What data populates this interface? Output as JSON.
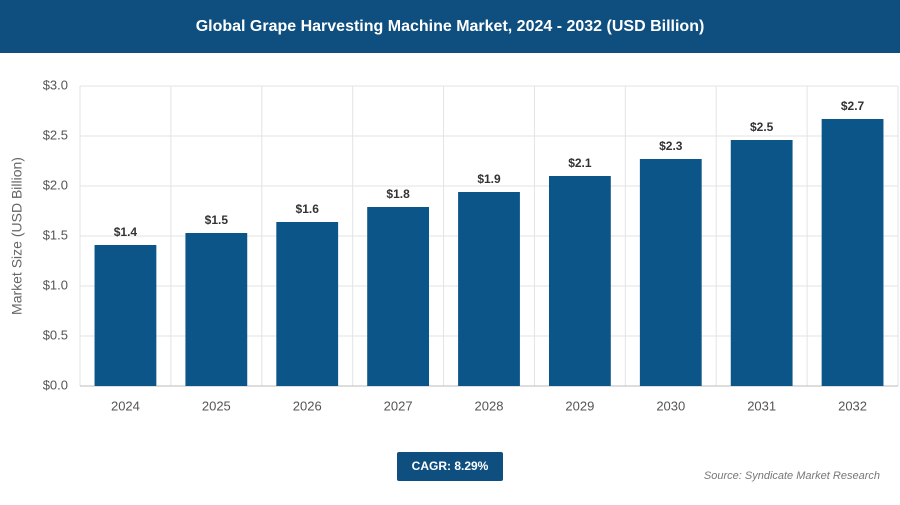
{
  "chart_data": {
    "type": "bar",
    "title": "Global Grape Harvesting Machine Market, 2024 - 2032 (USD Billion)",
    "y_label": "Market Size (USD Billion)",
    "categories": [
      "2024",
      "2025",
      "2026",
      "2027",
      "2028",
      "2029",
      "2030",
      "2031",
      "2032"
    ],
    "values": [
      1.41,
      1.53,
      1.64,
      1.79,
      1.94,
      2.1,
      2.27,
      2.46,
      2.67
    ],
    "value_labels": [
      "$1.4",
      "$1.5",
      "$1.6",
      "$1.8",
      "$1.9",
      "$2.1",
      "$2.3",
      "$2.5",
      "$2.7"
    ],
    "color": "#0b5588",
    "ylim": [
      0,
      3
    ],
    "yticks": [
      {
        "value": 0,
        "label": "$0.0"
      },
      {
        "value": 0.5,
        "label": "$0.5"
      },
      {
        "value": 1,
        "label": "$1.0"
      },
      {
        "value": 1.5,
        "label": "$1.5"
      },
      {
        "value": 2,
        "label": "$2.0"
      },
      {
        "value": 2.5,
        "label": "$2.5"
      },
      {
        "value": 3,
        "label": "$3.0"
      }
    ],
    "grid": true,
    "cagr": "CAGR: 8.29%",
    "source": "Source: Syndicate Market Research"
  }
}
